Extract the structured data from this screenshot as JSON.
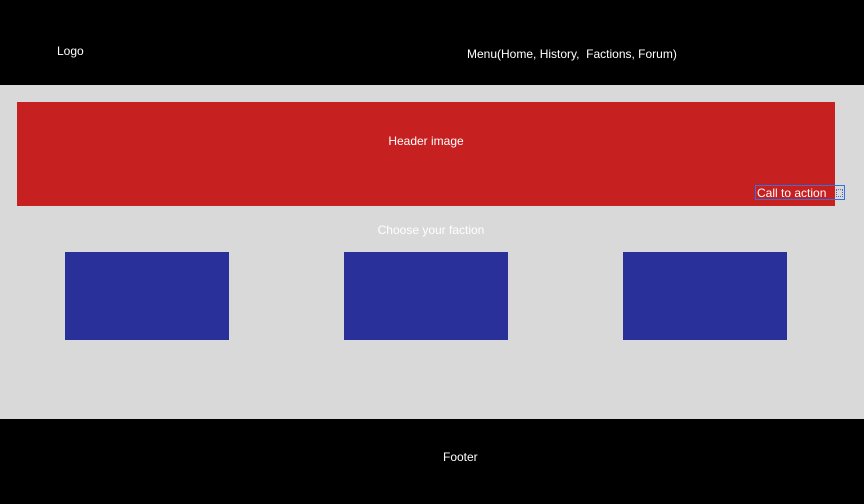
{
  "header": {
    "logo": "Logo",
    "menu": "Menu(Home, History,  Factions, Forum)"
  },
  "hero": {
    "label": "Header image",
    "cta": "Call to action"
  },
  "factions": {
    "heading": "Choose your faction",
    "count": 3
  },
  "footer": {
    "label": "Footer"
  },
  "colors": {
    "topbar": "#000000",
    "background": "#d9d9d9",
    "header_image": "#c62020",
    "faction_card": "#29309a",
    "selection": "#3a6fd8"
  }
}
